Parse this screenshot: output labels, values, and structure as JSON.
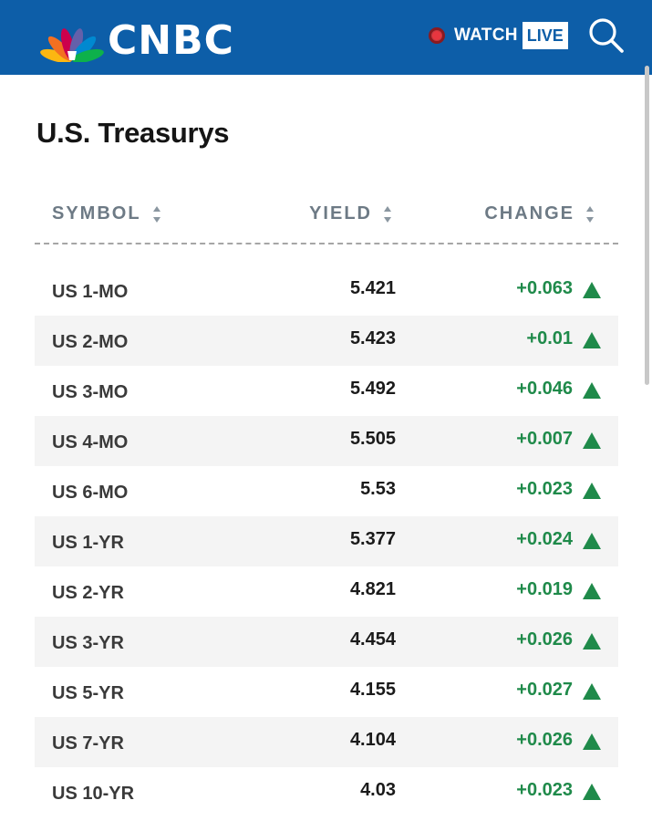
{
  "header": {
    "logo_text": "CNBC",
    "watch_label": "WATCH",
    "live_label": "LIVE",
    "icons": {
      "logo": "nbc-peacock-icon",
      "live_dot": "record-dot-icon",
      "search": "search-icon"
    },
    "colors": {
      "bar": "#0d5ea8",
      "live_dot": "#e8363f"
    }
  },
  "page": {
    "title": "U.S. Treasurys"
  },
  "table": {
    "columns": [
      {
        "label": "SYMBOL",
        "sort_icon": "sort-icon"
      },
      {
        "label": "YIELD",
        "sort_icon": "sort-icon"
      },
      {
        "label": "CHANGE",
        "sort_icon": "sort-icon"
      }
    ],
    "change_color": "#1f8a4a",
    "change_icon": "triangle-up-icon",
    "rows": [
      {
        "symbol": "US 1-MO",
        "yield": "5.421",
        "change": "+0.063"
      },
      {
        "symbol": "US 2-MO",
        "yield": "5.423",
        "change": "+0.01"
      },
      {
        "symbol": "US 3-MO",
        "yield": "5.492",
        "change": "+0.046"
      },
      {
        "symbol": "US 4-MO",
        "yield": "5.505",
        "change": "+0.007"
      },
      {
        "symbol": "US 6-MO",
        "yield": "5.53",
        "change": "+0.023"
      },
      {
        "symbol": "US 1-YR",
        "yield": "5.377",
        "change": "+0.024"
      },
      {
        "symbol": "US 2-YR",
        "yield": "4.821",
        "change": "+0.019"
      },
      {
        "symbol": "US 3-YR",
        "yield": "4.454",
        "change": "+0.026"
      },
      {
        "symbol": "US 5-YR",
        "yield": "4.155",
        "change": "+0.027"
      },
      {
        "symbol": "US 7-YR",
        "yield": "4.104",
        "change": "+0.026"
      },
      {
        "symbol": "US 10-YR",
        "yield": "4.03",
        "change": "+0.023"
      }
    ]
  }
}
